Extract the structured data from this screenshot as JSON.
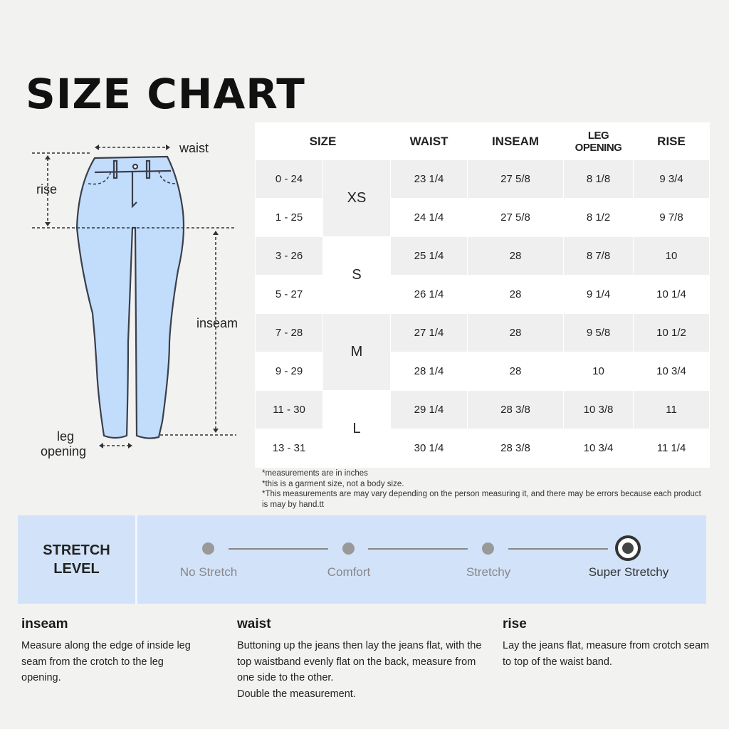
{
  "title": "SIZE CHART",
  "diagram": {
    "waist": "waist",
    "rise": "rise",
    "inseam": "inseam",
    "leg_opening_1": "leg",
    "leg_opening_2": "opening",
    "colors": {
      "denim": "#c2dcfb",
      "outline": "#3a3f4a"
    }
  },
  "table": {
    "headers": [
      "SIZE",
      "WAIST",
      "INSEAM",
      "LEG OPENING",
      "RISE"
    ],
    "groups": [
      "XS",
      "S",
      "M",
      "L"
    ],
    "rows": [
      [
        "0 - 24",
        "23 1/4",
        "27 5/8",
        "8 1/8",
        "9 3/4"
      ],
      [
        "1 - 25",
        "24 1/4",
        "27 5/8",
        "8 1/2",
        "9 7/8"
      ],
      [
        "3 - 26",
        "25 1/4",
        "28",
        "8 7/8",
        "10"
      ],
      [
        "5 - 27",
        "26 1/4",
        "28",
        "9 1/4",
        "10 1/4"
      ],
      [
        "7 - 28",
        "27 1/4",
        "28",
        "9 5/8",
        "10 1/2"
      ],
      [
        "9 - 29",
        "28 1/4",
        "28",
        "10",
        "10 3/4"
      ],
      [
        "11 - 30",
        "29 1/4",
        "28 3/8",
        "10 3/8",
        "11"
      ],
      [
        "13 - 31",
        "30 1/4",
        "28 3/8",
        "10 3/4",
        "11 1/4"
      ]
    ]
  },
  "notes": [
    "*measurements are in inches",
    "*this is a garment size, not a body size.",
    "*This measurements are may vary depending on the person measuring it, and there may be errors because each product is may by hand.tt"
  ],
  "stretch": {
    "label_1": "STRETCH",
    "label_2": "LEVEL",
    "levels": [
      "No Stretch",
      "Comfort",
      "Stretchy",
      "Super Stretchy"
    ],
    "selected": "Super Stretchy",
    "color": "#d2e2f8"
  },
  "definitions": [
    {
      "term": "inseam",
      "text": "Measure along the edge of inside leg seam from the crotch to the leg opening."
    },
    {
      "term": "waist",
      "text": "Buttoning up the jeans then lay the jeans flat, with the top waistband evenly flat on the back, measure from one side to the other.",
      "text2": "Double the measurement."
    },
    {
      "term": "rise",
      "text": "Lay the jeans flat, measure from crotch seam to top of the waist band."
    }
  ]
}
